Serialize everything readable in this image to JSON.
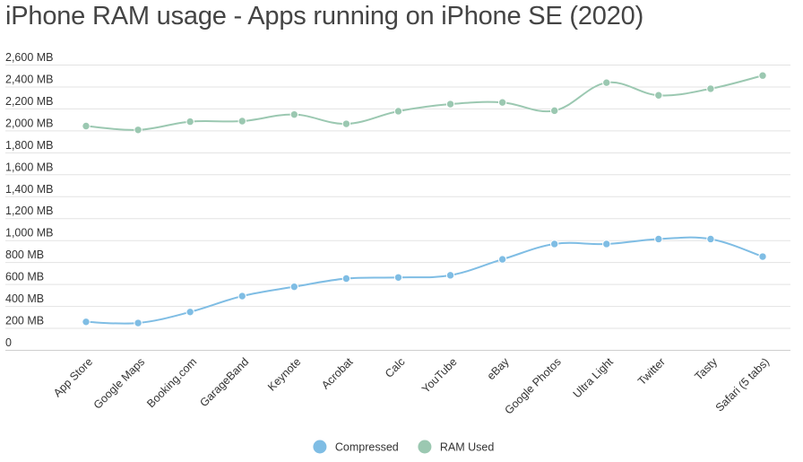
{
  "chart_data": {
    "type": "line",
    "title": "iPhone RAM usage - Apps running on iPhone SE (2020)",
    "categories": [
      "App Store",
      "Google Maps",
      "Booking.com",
      "GarageBand",
      "Keynote",
      "Acrobat",
      "Calc",
      "YouTube",
      "eBay",
      "Google Photos",
      "Ultra Light",
      "Twitter",
      "Tasty",
      "Safari (5 tabs)"
    ],
    "y_ticks": [
      "0",
      "200 MB",
      "400 MB",
      "600 MB",
      "800 MB",
      "1,000 MB",
      "1,200 MB",
      "1,400 MB",
      "1,600 MB",
      "1,800 MB",
      "2,000 MB",
      "2,200 MB",
      "2,400 MB",
      "2,600 MB"
    ],
    "ylim": [
      0,
      2600
    ],
    "grid": true,
    "legend_position": "bottom",
    "series": [
      {
        "name": "Compressed",
        "color": "#7fbde4",
        "values": [
          255,
          245,
          345,
          490,
          575,
          650,
          660,
          680,
          825,
          965,
          965,
          1010,
          1010,
          850
        ]
      },
      {
        "name": "RAM Used",
        "color": "#9bc8b1",
        "values": [
          2040,
          2005,
          2080,
          2085,
          2145,
          2060,
          2175,
          2240,
          2255,
          2180,
          2435,
          2320,
          2380,
          2500
        ]
      }
    ]
  }
}
